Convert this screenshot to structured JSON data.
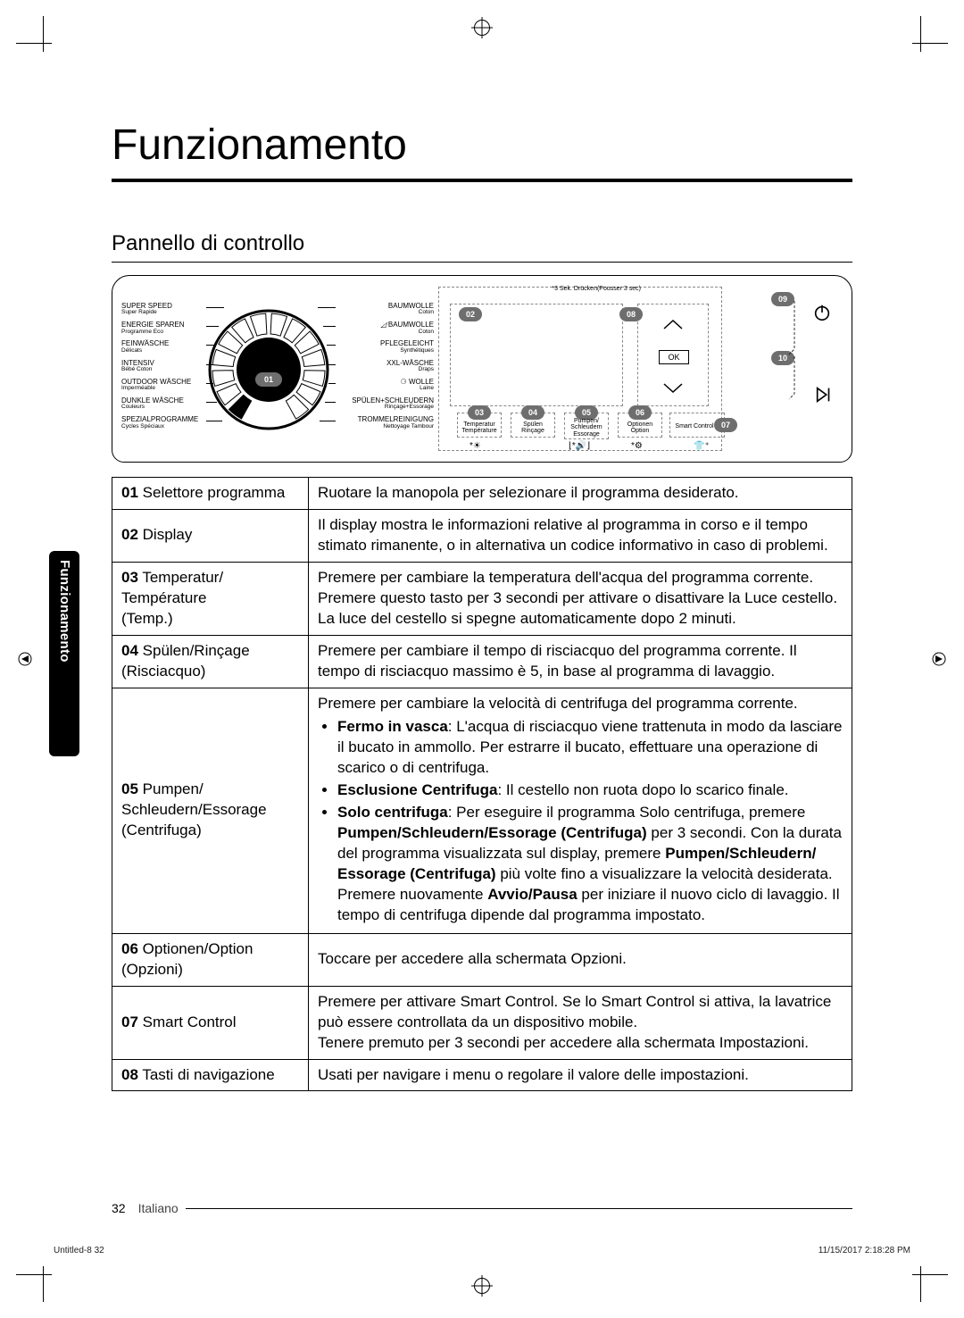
{
  "page": {
    "title": "Funzionamento",
    "section_title": "Pannello di controllo",
    "side_tab": "Funzionamento",
    "footer_page": "32",
    "footer_lang": "Italiano",
    "fine_left": "Untitled-8   32",
    "fine_right": "11/15/2017   2:18:28 PM"
  },
  "dial": {
    "badge": "01",
    "left_programs": [
      {
        "main": "SUPER SPEED",
        "sub": "Super Rapide",
        "leader": 20
      },
      {
        "main": "ENERGIE SPAREN",
        "sub": "Programme Eco",
        "leader": 14
      },
      {
        "main": "FEINWÄSCHE",
        "sub": "Délicats",
        "leader": 10
      },
      {
        "main": "INTENSIV",
        "sub": "Bébé Coton",
        "leader": 8
      },
      {
        "main": "OUTDOOR WÄSCHE",
        "sub": "Imperméable",
        "leader": 8
      },
      {
        "main": "DUNKLE WÄSCHE",
        "sub": "Couleurs",
        "leader": 12
      },
      {
        "main": "SPEZIALPROGRAMME",
        "sub": "Cycles Spéciaux",
        "leader": 18
      }
    ],
    "right_programs": [
      {
        "main": "BAUMWOLLE",
        "sub": "Coton",
        "leader": 20
      },
      {
        "main": "BAUMWOLLE",
        "sub": "Coton",
        "leader": 14,
        "eco": true
      },
      {
        "main": "PFLEGELEICHT",
        "sub": "Synthétiques",
        "leader": 10
      },
      {
        "main": "XXL-WÄSCHE",
        "sub": "Draps",
        "leader": 8
      },
      {
        "main": "WOLLE",
        "sub": "Laine",
        "leader": 8,
        "wolle": true
      },
      {
        "main": "SPÜLEN+SCHLEUDERN",
        "sub": "Rinçage+Essorage",
        "leader": 12
      },
      {
        "main": "TROMMELREINIGUNG",
        "sub": "Nettoyage Tambour",
        "leader": 18
      }
    ]
  },
  "display": {
    "note": "*3 Sek. Drücken(Pousser 3 sec)",
    "ok": "OK",
    "badges": {
      "b02": "02",
      "b03": "03",
      "b04": "04",
      "b05": "05",
      "b06": "06",
      "b07": "07",
      "b08": "08",
      "b09": "09",
      "b10": "10"
    },
    "sublabels": {
      "l03a": "Temperatur",
      "l03b": "Température",
      "l04a": "Spülen",
      "l04b": "Rinçage",
      "l05a": "Pumpen/",
      "l05b": "Schleudern",
      "l05c": "Essorage",
      "l06a": "Optionen",
      "l06b": "Option",
      "l07": "Smart Control"
    }
  },
  "table": {
    "rows": [
      {
        "num": "01",
        "label": "Selettore programma",
        "desc": "Ruotare la manopola per selezionare il programma desiderato."
      },
      {
        "num": "02",
        "label": "Display",
        "desc": "Il display mostra le informazioni relative al programma in corso e il tempo stimato rimanente, o in alternativa un codice informativo in caso di problemi."
      },
      {
        "num": "03",
        "label": "Temperatur/ Température (Temp.)",
        "desc_lines": [
          "Premere per cambiare la temperatura dell'acqua del programma corrente.",
          "Premere questo tasto per 3 secondi per attivare o disattivare la Luce cestello.",
          "La luce del cestello si spegne automaticamente dopo 2 minuti."
        ]
      },
      {
        "num": "04",
        "label": "Spülen/Rinçage (Risciacquo)",
        "desc": "Premere per cambiare il tempo di risciacquo del programma corrente. Il tempo di risciacquo massimo è 5, in base al programma di lavaggio."
      },
      {
        "num": "05",
        "label": "Pumpen/ Schleudern/Essorage (Centrifuga)",
        "desc_intro": "Premere per cambiare la velocità di centrifuga del programma corrente.",
        "bullets": [
          "<b>Fermo in vasca</b>: L'acqua di risciacquo viene trattenuta in modo da lasciare il bucato in ammollo. Per estrarre il bucato, effettuare una operazione di scarico o di centrifuga.",
          "<b>Esclusione Centrifuga</b>: Il cestello non ruota dopo lo scarico finale.",
          "<b>Solo centrifuga</b>: Per eseguire il programma Solo centrifuga, premere <b>Pumpen/Schleudern/Essorage (Centrifuga)</b> per 3 secondi. Con la durata del programma visualizzata sul display, premere <b>Pumpen/Schleudern/ Essorage (Centrifuga)</b> più volte fino a visualizzare la velocità desiderata. Premere nuovamente <b>Avvio/Pausa</b> per iniziare il nuovo ciclo di lavaggio. Il tempo di centrifuga dipende dal programma impostato."
        ]
      },
      {
        "num": "06",
        "label": "Optionen/Option (Opzioni)",
        "desc": "Toccare per accedere alla schermata Opzioni."
      },
      {
        "num": "07",
        "label": "Smart Control",
        "desc_lines": [
          "Premere per attivare Smart Control. Se lo Smart Control si attiva, la lavatrice può essere controllata da un dispositivo mobile.",
          "Tenere premuto per 3 secondi per accedere alla schermata Impostazioni."
        ]
      },
      {
        "num": "08",
        "label": "Tasti di navigazione",
        "desc": "Usati per navigare i menu o regolare il valore delle impostazioni."
      }
    ]
  },
  "colors": {
    "badge_bg": "#6e6e6e",
    "dash": "#888888"
  }
}
